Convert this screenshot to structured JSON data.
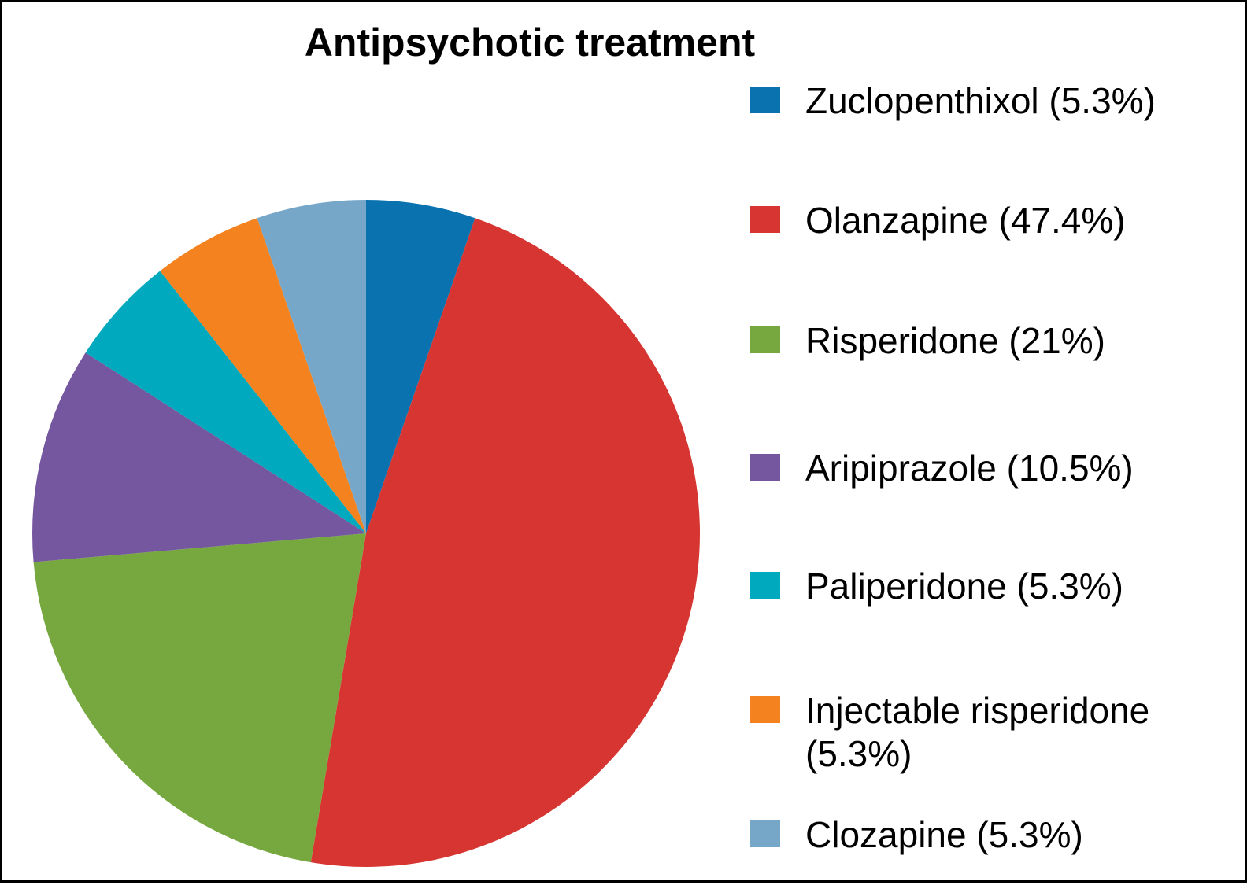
{
  "chart_data": {
    "type": "pie",
    "title": "Antipsychotic treatment",
    "categories": [
      "Zuclopenthixol (5.3%)",
      "Olanzapine (47.4%)",
      "Risperidone (21%)",
      "Aripiprazole (10.5%)",
      "Paliperidone (5.3%)",
      "Injectable risperidone (5.3%)",
      "Clozapine (5.3%)"
    ],
    "values": [
      5.3,
      47.4,
      21,
      10.5,
      5.3,
      5.3,
      5.3
    ],
    "colors": [
      "#0b72b0",
      "#d63531",
      "#77a83f",
      "#74579e",
      "#00a9bd",
      "#f4821f",
      "#77a7c8"
    ],
    "legend": "right"
  }
}
